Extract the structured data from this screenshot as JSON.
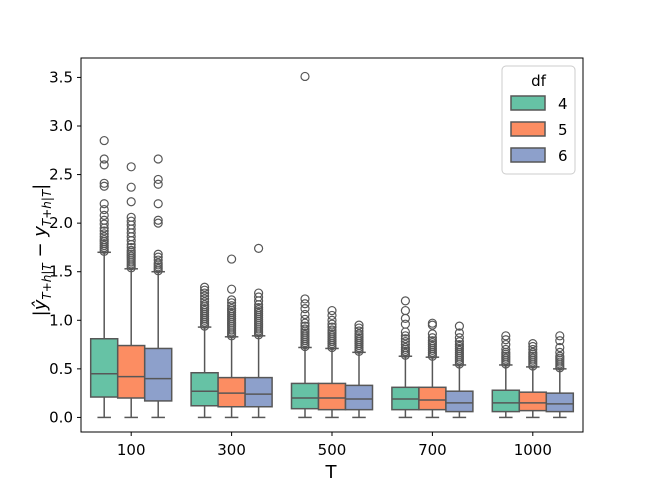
{
  "chart_data": {
    "type": "boxplot",
    "title": "",
    "xlabel": "T",
    "ylabel_parts": {
      "open": "|",
      "yhat": "ŷ",
      "sub1": "T+h|T",
      "minus": " − ",
      "y": "y",
      "sub2": "T+h|T",
      "close": "|"
    },
    "ylim": [
      -0.15,
      3.7
    ],
    "yticks": [
      "0.0",
      "0.5",
      "1.0",
      "1.5",
      "2.0",
      "2.5",
      "3.0",
      "3.5"
    ],
    "categories": [
      "100",
      "300",
      "500",
      "700",
      "1000"
    ],
    "legend": {
      "title": "df",
      "location": "upper right"
    },
    "series": [
      {
        "name": "4",
        "color": "#66c2a5",
        "boxes": [
          {
            "whislo": 0.0,
            "q1": 0.21,
            "med": 0.45,
            "q3": 0.81,
            "whishi": 1.7,
            "fliers": [
              1.71,
              1.73,
              1.75,
              1.77,
              1.79,
              1.81,
              1.83,
              1.86,
              1.89,
              1.92,
              1.95,
              1.99,
              2.03,
              2.08,
              2.14,
              2.2,
              2.38,
              2.41,
              2.6,
              2.66,
              2.85
            ]
          },
          {
            "whislo": 0.0,
            "q1": 0.12,
            "med": 0.27,
            "q3": 0.46,
            "whishi": 0.93,
            "fliers": [
              0.94,
              0.96,
              0.98,
              1.0,
              1.02,
              1.04,
              1.06,
              1.08,
              1.1,
              1.12,
              1.14,
              1.16,
              1.19,
              1.22,
              1.25,
              1.28,
              1.31,
              1.34
            ]
          },
          {
            "whislo": 0.0,
            "q1": 0.09,
            "med": 0.2,
            "q3": 0.35,
            "whishi": 0.72,
            "fliers": [
              0.73,
              0.75,
              0.77,
              0.79,
              0.81,
              0.83,
              0.85,
              0.87,
              0.89,
              0.91,
              0.94,
              0.97,
              1.01,
              1.06,
              1.12,
              1.17,
              1.22,
              3.51
            ]
          },
          {
            "whislo": 0.0,
            "q1": 0.08,
            "med": 0.19,
            "q3": 0.31,
            "whishi": 0.63,
            "fliers": [
              0.64,
              0.66,
              0.68,
              0.7,
              0.72,
              0.75,
              0.78,
              0.81,
              0.84,
              0.88,
              0.96,
              1.02,
              1.1,
              1.2
            ]
          },
          {
            "whislo": 0.0,
            "q1": 0.06,
            "med": 0.15,
            "q3": 0.28,
            "whishi": 0.54,
            "fliers": [
              0.55,
              0.57,
              0.59,
              0.61,
              0.63,
              0.65,
              0.67,
              0.7,
              0.75,
              0.8,
              0.84
            ]
          }
        ]
      },
      {
        "name": "5",
        "color": "#fc8d62",
        "boxes": [
          {
            "whislo": 0.0,
            "q1": 0.2,
            "med": 0.42,
            "q3": 0.74,
            "whishi": 1.53,
            "fliers": [
              1.54,
              1.56,
              1.58,
              1.6,
              1.62,
              1.64,
              1.66,
              1.68,
              1.7,
              1.72,
              1.75,
              1.78,
              1.82,
              1.86,
              1.9,
              1.94,
              1.98,
              2.02,
              2.06,
              2.22,
              2.37,
              2.58
            ]
          },
          {
            "whislo": 0.0,
            "q1": 0.11,
            "med": 0.25,
            "q3": 0.41,
            "whishi": 0.83,
            "fliers": [
              0.84,
              0.86,
              0.88,
              0.9,
              0.92,
              0.94,
              0.96,
              0.98,
              1.0,
              1.02,
              1.04,
              1.06,
              1.08,
              1.1,
              1.12,
              1.15,
              1.18,
              1.21,
              1.32,
              1.63
            ]
          },
          {
            "whislo": 0.0,
            "q1": 0.08,
            "med": 0.2,
            "q3": 0.35,
            "whishi": 0.71,
            "fliers": [
              0.72,
              0.74,
              0.76,
              0.78,
              0.8,
              0.82,
              0.84,
              0.86,
              0.88,
              0.9,
              0.93,
              0.96,
              1.0,
              1.05,
              1.1
            ]
          },
          {
            "whislo": 0.0,
            "q1": 0.08,
            "med": 0.18,
            "q3": 0.31,
            "whishi": 0.62,
            "fliers": [
              0.63,
              0.65,
              0.67,
              0.69,
              0.71,
              0.73,
              0.75,
              0.77,
              0.79,
              0.82,
              0.86,
              0.95,
              0.97
            ]
          },
          {
            "whislo": 0.0,
            "q1": 0.07,
            "med": 0.15,
            "q3": 0.26,
            "whishi": 0.52,
            "fliers": [
              0.53,
              0.55,
              0.57,
              0.59,
              0.61,
              0.63,
              0.65,
              0.67,
              0.7,
              0.73,
              0.76
            ]
          }
        ]
      },
      {
        "name": "6",
        "color": "#8da0cb",
        "boxes": [
          {
            "whislo": 0.0,
            "q1": 0.17,
            "med": 0.4,
            "q3": 0.71,
            "whishi": 1.5,
            "fliers": [
              1.51,
              1.53,
              1.55,
              1.57,
              1.59,
              1.62,
              1.65,
              1.68,
              2.0,
              2.03,
              2.2,
              2.4,
              2.45,
              2.66
            ]
          },
          {
            "whislo": 0.0,
            "q1": 0.11,
            "med": 0.24,
            "q3": 0.41,
            "whishi": 0.84,
            "fliers": [
              0.85,
              0.87,
              0.89,
              0.91,
              0.93,
              0.95,
              0.97,
              0.99,
              1.01,
              1.03,
              1.05,
              1.07,
              1.09,
              1.11,
              1.13,
              1.16,
              1.2,
              1.24,
              1.28,
              1.74
            ]
          },
          {
            "whislo": 0.0,
            "q1": 0.08,
            "med": 0.19,
            "q3": 0.33,
            "whishi": 0.67,
            "fliers": [
              0.68,
              0.7,
              0.72,
              0.74,
              0.76,
              0.78,
              0.8,
              0.82,
              0.84,
              0.86,
              0.89,
              0.92,
              0.95
            ]
          },
          {
            "whislo": 0.0,
            "q1": 0.06,
            "med": 0.15,
            "q3": 0.27,
            "whishi": 0.54,
            "fliers": [
              0.55,
              0.57,
              0.59,
              0.61,
              0.63,
              0.65,
              0.67,
              0.69,
              0.71,
              0.73,
              0.75,
              0.78,
              0.82,
              0.87,
              0.94
            ]
          },
          {
            "whislo": 0.0,
            "q1": 0.06,
            "med": 0.14,
            "q3": 0.25,
            "whishi": 0.5,
            "fliers": [
              0.51,
              0.53,
              0.55,
              0.57,
              0.59,
              0.61,
              0.63,
              0.67,
              0.72,
              0.79,
              0.84
            ]
          }
        ]
      }
    ]
  }
}
